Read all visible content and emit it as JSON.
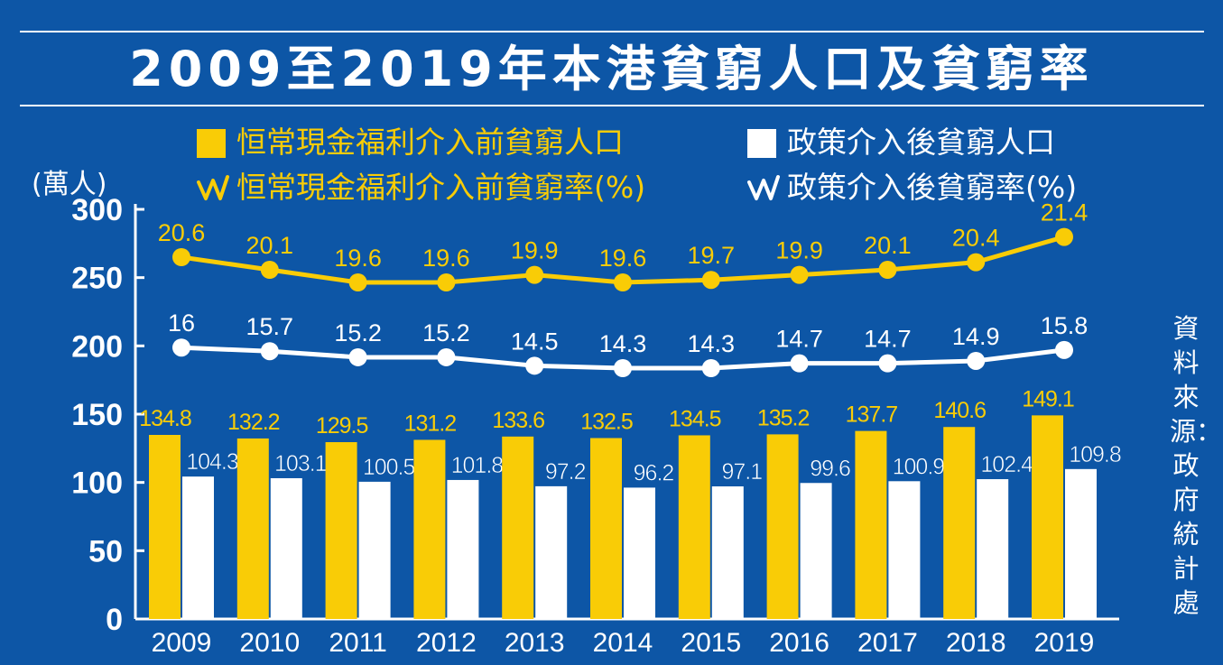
{
  "title": "2009至2019年本港貧窮人口及貧窮率",
  "source": "資料來源：政府統計處",
  "colors": {
    "background": "#0d56a6",
    "yellow": "#f9cc06",
    "white": "#ffffff"
  },
  "legend": {
    "pre_population": "恒常現金福利介入前貧窮人口",
    "post_population": "政策介入後貧窮人口",
    "pre_rate": "恒常現金福利介入前貧窮率(%)",
    "post_rate": "政策介入後貧窮率(%)",
    "rate_icon": "zigzag-line-icon"
  },
  "chart_data": {
    "type": "bar",
    "ylabel": "(萬人)",
    "ylim": [
      0,
      300
    ],
    "yticks": [
      0,
      50,
      100,
      150,
      200,
      250,
      300
    ],
    "categories": [
      "2009",
      "2010",
      "2011",
      "2012",
      "2013",
      "2014",
      "2015",
      "2016",
      "2017",
      "2018",
      "2019"
    ],
    "series": [
      {
        "name": "恒常現金福利介入前貧窮人口",
        "kind": "bar",
        "color": "#f9cc06",
        "values": [
          134.8,
          132.2,
          129.5,
          131.2,
          133.6,
          132.5,
          134.5,
          135.2,
          137.7,
          140.6,
          149.1
        ],
        "labels": [
          "134.8",
          "132.2",
          "129.5",
          "131.2",
          "133.6",
          "132.5",
          "134.5",
          "135.2",
          "137.7",
          "140.6",
          "149.1"
        ]
      },
      {
        "name": "政策介入後貧窮人口",
        "kind": "bar",
        "color": "#ffffff",
        "values": [
          104.3,
          103.1,
          100.5,
          101.8,
          97.2,
          96.2,
          97.1,
          99.6,
          100.9,
          102.4,
          109.8
        ],
        "labels": [
          "104.3",
          "103.1",
          "100.5",
          "101.8",
          "97.2",
          "96.2",
          "97.1",
          "99.6",
          "100.9",
          "102.4",
          "109.8"
        ]
      },
      {
        "name": "恒常現金福利介入前貧窮率(%)",
        "kind": "line",
        "color": "#f9cc06",
        "values": [
          20.6,
          20.1,
          19.6,
          19.6,
          19.9,
          19.6,
          19.7,
          19.9,
          20.1,
          20.4,
          21.4
        ],
        "labels": [
          "20.6",
          "20.1",
          "19.6",
          "19.6",
          "19.9",
          "19.6",
          "19.7",
          "19.9",
          "20.1",
          "20.4",
          "21.4"
        ]
      },
      {
        "name": "政策介入後貧窮率(%)",
        "kind": "line",
        "color": "#ffffff",
        "values": [
          16,
          15.7,
          15.2,
          15.2,
          14.5,
          14.3,
          14.3,
          14.7,
          14.7,
          14.9,
          15.8
        ],
        "labels": [
          "16",
          "15.7",
          "15.2",
          "15.2",
          "14.5",
          "14.3",
          "14.3",
          "14.7",
          "14.7",
          "14.9",
          "15.8"
        ]
      }
    ]
  }
}
